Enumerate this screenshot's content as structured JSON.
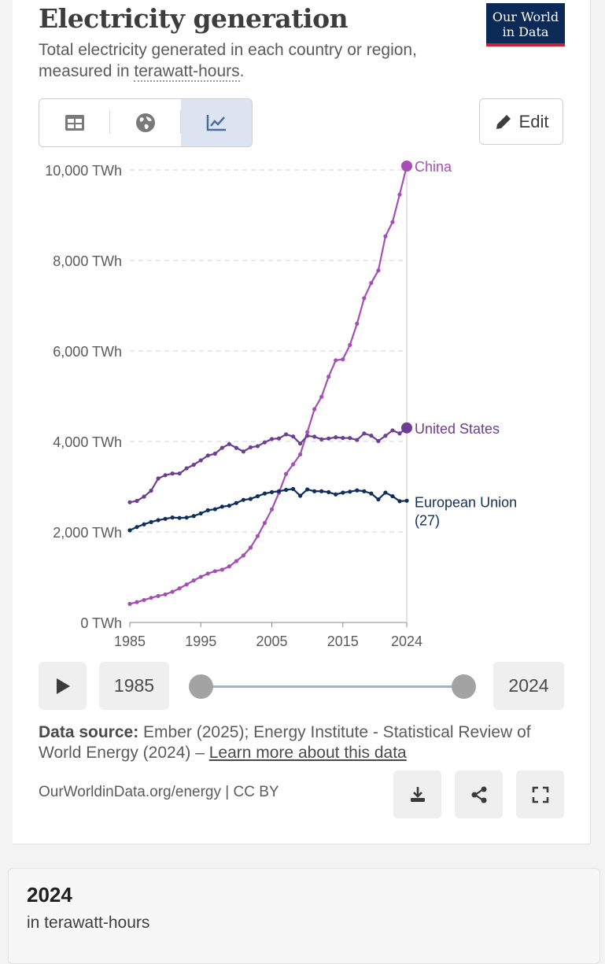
{
  "header": {
    "title": "Electricity generation",
    "subtitle_before": "Total electricity generated in each country or region, measured in ",
    "subtitle_unit": "terawatt-hours",
    "subtitle_after": ".",
    "logo_line1": "Our World",
    "logo_line2": "in Data"
  },
  "toolbar": {
    "tabs": [
      {
        "name": "table",
        "icon": "table-icon",
        "active": false
      },
      {
        "name": "map",
        "icon": "globe-icon",
        "active": false
      },
      {
        "name": "chart",
        "icon": "line-chart-icon",
        "active": true
      }
    ],
    "edit_label": "Edit"
  },
  "colors": {
    "china": "#a54fb5",
    "united_states": "#6d3e91",
    "european_union": "#0e2f5e",
    "accent_red": "#cc1f35",
    "logo_bg": "#0c2a56"
  },
  "chart_data": {
    "type": "line",
    "xlabel": "",
    "ylabel": "",
    "xlim": [
      1985,
      2024
    ],
    "ylim": [
      0,
      10000
    ],
    "x_ticks": [
      "1985",
      "1995",
      "2005",
      "2015",
      "2024"
    ],
    "y_ticks": [
      "0 TWh",
      "2,000 TWh",
      "4,000 TWh",
      "6,000 TWh",
      "8,000 TWh",
      "10,000 TWh"
    ],
    "grid": "horizontal dashed",
    "x": [
      1985,
      1986,
      1987,
      1988,
      1989,
      1990,
      1991,
      1992,
      1993,
      1994,
      1995,
      1996,
      1997,
      1998,
      1999,
      2000,
      2001,
      2002,
      2003,
      2004,
      2005,
      2006,
      2007,
      2008,
      2009,
      2010,
      2011,
      2012,
      2013,
      2014,
      2015,
      2016,
      2017,
      2018,
      2019,
      2020,
      2021,
      2022,
      2023,
      2024
    ],
    "series": [
      {
        "name": "China",
        "label": "China",
        "color": "#a54fb5",
        "values": [
          411,
          450,
          497,
          545,
          585,
          621,
          678,
          754,
          840,
          928,
          1008,
          1081,
          1134,
          1167,
          1239,
          1356,
          1480,
          1654,
          1910,
          2200,
          2500,
          2866,
          3282,
          3496,
          3714,
          4208,
          4713,
          4988,
          5432,
          5795,
          5815,
          6133,
          6604,
          7166,
          7503,
          7779,
          8534,
          8849,
          9456,
          10087
        ]
      },
      {
        "name": "United States",
        "label": "United States",
        "color": "#6d3e91",
        "values": [
          2657,
          2687,
          2781,
          2913,
          3182,
          3255,
          3291,
          3292,
          3407,
          3485,
          3583,
          3690,
          3730,
          3860,
          3942,
          3859,
          3778,
          3871,
          3897,
          3981,
          4055,
          4067,
          4157,
          4110,
          3953,
          4125,
          4106,
          4048,
          4066,
          4093,
          4078,
          4076,
          4034,
          4177,
          4128,
          4011,
          4126,
          4245,
          4178,
          4300
        ]
      },
      {
        "name": "European Union (27)",
        "label_line1": "European Union",
        "label_line2": "(27)",
        "color": "#0e2f5e",
        "values": [
          2037,
          2110,
          2170,
          2220,
          2261,
          2290,
          2320,
          2310,
          2318,
          2352,
          2410,
          2480,
          2503,
          2560,
          2580,
          2640,
          2710,
          2730,
          2790,
          2850,
          2880,
          2900,
          2930,
          2950,
          2800,
          2940,
          2900,
          2900,
          2880,
          2830,
          2870,
          2890,
          2920,
          2900,
          2850,
          2720,
          2870,
          2790,
          2680,
          2690
        ]
      }
    ]
  },
  "timeline": {
    "start_year": "1985",
    "end_year": "2024",
    "start_fraction": 0,
    "end_fraction": 1
  },
  "footer": {
    "source_label": "Data source:",
    "source_text": " Ember (2025); Energy Institute - Statistical Review of World Energy (2024) – ",
    "learn_more": "Learn more about this data",
    "license": "OurWorldinData.org/energy | CC BY"
  },
  "table_panel": {
    "year": "2024",
    "unit": "in terawatt-hours"
  }
}
